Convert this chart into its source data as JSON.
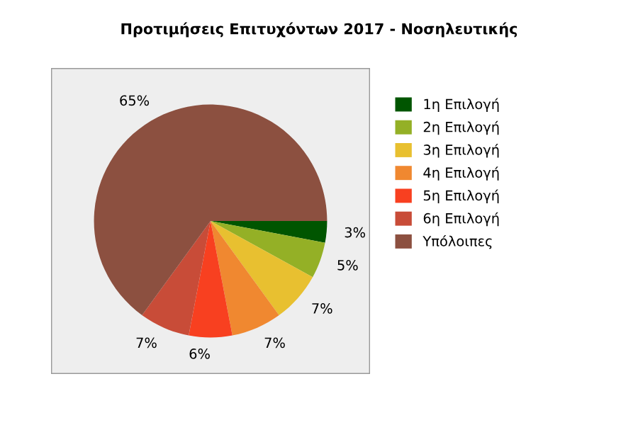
{
  "chart_data": {
    "type": "pie",
    "title": "Προτιμήσεις Επιτυχόντων 2017 - Νοσηλευτικής",
    "categories": [
      "1η Επιλογή",
      "2η Επιλογή",
      "3η Επιλογή",
      "4η Επιλογή",
      "5η Επιλογή",
      "6η Επιλογή",
      "Υπόλοιπες"
    ],
    "values": [
      3,
      5,
      7,
      7,
      6,
      7,
      65
    ],
    "colors": [
      "#005500",
      "#94b026",
      "#e8c030",
      "#f08830",
      "#f84020",
      "#c84c38",
      "#8c5040"
    ],
    "value_labels": [
      "3%",
      "5%",
      "7%",
      "7%",
      "6%",
      "7%",
      "65%"
    ],
    "legend": "right"
  }
}
